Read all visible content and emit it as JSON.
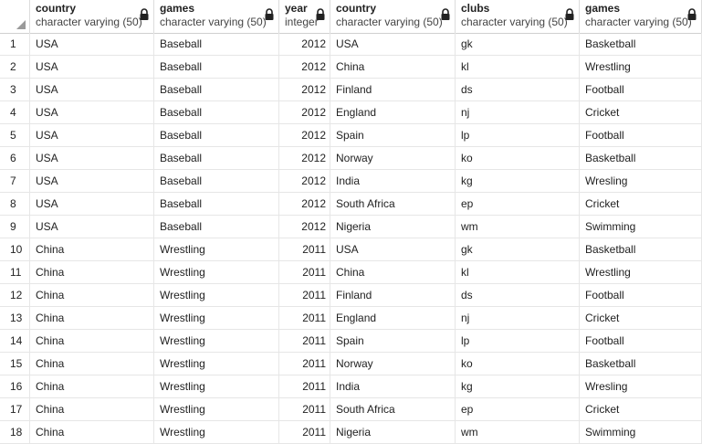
{
  "columns": [
    {
      "name": "country",
      "type": "character varying (50)"
    },
    {
      "name": "games",
      "type": "character varying (50)"
    },
    {
      "name": "year",
      "type": "integer"
    },
    {
      "name": "country",
      "type": "character varying (50)"
    },
    {
      "name": "clubs",
      "type": "character varying (50)"
    },
    {
      "name": "games",
      "type": "character varying (50)"
    }
  ],
  "rows": [
    {
      "n": "1",
      "c": [
        "USA",
        "Baseball",
        "2012",
        "USA",
        "gk",
        "Basketball"
      ]
    },
    {
      "n": "2",
      "c": [
        "USA",
        "Baseball",
        "2012",
        "China",
        "kl",
        "Wrestling"
      ]
    },
    {
      "n": "3",
      "c": [
        "USA",
        "Baseball",
        "2012",
        "Finland",
        "ds",
        "Football"
      ]
    },
    {
      "n": "4",
      "c": [
        "USA",
        "Baseball",
        "2012",
        "England",
        "nj",
        "Cricket"
      ]
    },
    {
      "n": "5",
      "c": [
        "USA",
        "Baseball",
        "2012",
        "Spain",
        "lp",
        "Football"
      ]
    },
    {
      "n": "6",
      "c": [
        "USA",
        "Baseball",
        "2012",
        "Norway",
        "ko",
        "Basketball"
      ]
    },
    {
      "n": "7",
      "c": [
        "USA",
        "Baseball",
        "2012",
        "India",
        "kg",
        "Wresling"
      ]
    },
    {
      "n": "8",
      "c": [
        "USA",
        "Baseball",
        "2012",
        "South Africa",
        "ep",
        "Cricket"
      ]
    },
    {
      "n": "9",
      "c": [
        "USA",
        "Baseball",
        "2012",
        "Nigeria",
        "wm",
        "Swimming"
      ]
    },
    {
      "n": "10",
      "c": [
        "China",
        "Wrestling",
        "2011",
        "USA",
        "gk",
        "Basketball"
      ]
    },
    {
      "n": "11",
      "c": [
        "China",
        "Wrestling",
        "2011",
        "China",
        "kl",
        "Wrestling"
      ]
    },
    {
      "n": "12",
      "c": [
        "China",
        "Wrestling",
        "2011",
        "Finland",
        "ds",
        "Football"
      ]
    },
    {
      "n": "13",
      "c": [
        "China",
        "Wrestling",
        "2011",
        "England",
        "nj",
        "Cricket"
      ]
    },
    {
      "n": "14",
      "c": [
        "China",
        "Wrestling",
        "2011",
        "Spain",
        "lp",
        "Football"
      ]
    },
    {
      "n": "15",
      "c": [
        "China",
        "Wrestling",
        "2011",
        "Norway",
        "ko",
        "Basketball"
      ]
    },
    {
      "n": "16",
      "c": [
        "China",
        "Wrestling",
        "2011",
        "India",
        "kg",
        "Wresling"
      ]
    },
    {
      "n": "17",
      "c": [
        "China",
        "Wrestling",
        "2011",
        "South Africa",
        "ep",
        "Cricket"
      ]
    },
    {
      "n": "18",
      "c": [
        "China",
        "Wrestling",
        "2011",
        "Nigeria",
        "wm",
        "Swimming"
      ]
    }
  ],
  "icons": {
    "column_lock": "lock-icon",
    "corner": "sort-corner-icon"
  }
}
